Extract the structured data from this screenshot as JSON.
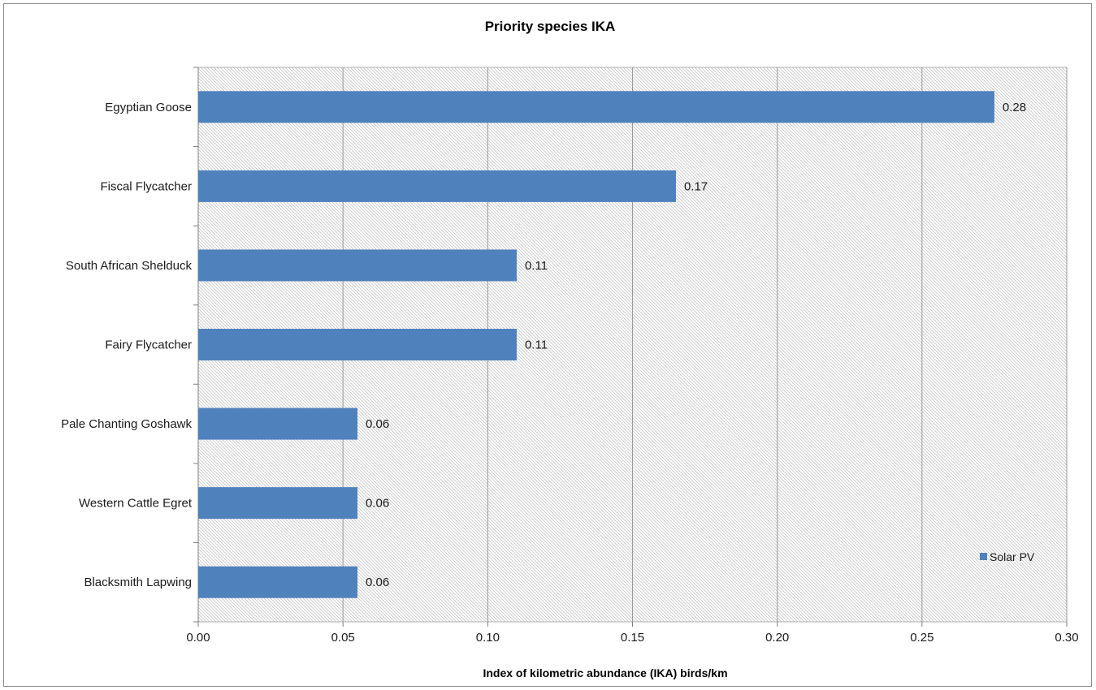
{
  "chart_data": {
    "type": "bar",
    "orientation": "horizontal",
    "title": "Priority species IKA",
    "xlabel": "Index of kilometric abundance (IKA) birds/km",
    "ylabel": "",
    "categories": [
      "Egyptian Goose",
      "Fiscal Flycatcher",
      "South African Shelduck",
      "Fairy Flycatcher",
      "Pale Chanting Goshawk",
      "Western Cattle Egret",
      "Blacksmith Lapwing"
    ],
    "series": [
      {
        "name": "Solar PV",
        "values": [
          0.275,
          0.165,
          0.11,
          0.11,
          0.055,
          0.055,
          0.055
        ],
        "labels": [
          "0.28",
          "0.17",
          "0.11",
          "0.11",
          "0.06",
          "0.06",
          "0.06"
        ],
        "color": "#4f81bd"
      }
    ],
    "xlim": [
      0,
      0.3
    ],
    "xticks": [
      0,
      0.05,
      0.1,
      0.15,
      0.2,
      0.25,
      0.3
    ],
    "xtick_labels": [
      "0.00",
      "0.05",
      "0.10",
      "0.15",
      "0.20",
      "0.25",
      "0.30"
    ],
    "grid": "vertical",
    "plot_background": "hatched-gray",
    "legend_position": "bottom-right"
  }
}
